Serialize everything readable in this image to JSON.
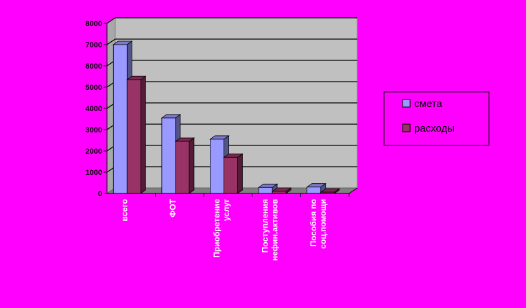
{
  "chart_data": {
    "type": "bar",
    "title": "",
    "xlabel": "",
    "ylabel": "",
    "ylim": [
      0,
      8000
    ],
    "yticks": [
      0,
      1000,
      2000,
      3000,
      4000,
      5000,
      6000,
      7000,
      8000
    ],
    "grid": true,
    "legend_position": "right",
    "categories": [
      [
        "всего"
      ],
      [
        "ФОТ"
      ],
      [
        "Приобретение",
        "услуг"
      ],
      [
        "Поступления",
        "нефин.активов"
      ],
      [
        "Пособия по",
        "соц.помощи"
      ]
    ],
    "series": [
      {
        "name": "смета",
        "values": [
          7000,
          3550,
          2550,
          280,
          300
        ],
        "color": "#9999ff"
      },
      {
        "name": "расходы",
        "values": [
          5350,
          2450,
          1700,
          100,
          60
        ],
        "color": "#993366"
      }
    ],
    "colors": {
      "background": "#ff00ff",
      "plot_area": "#c0c0c0",
      "grid": "#000000",
      "floor": "#808080"
    }
  }
}
